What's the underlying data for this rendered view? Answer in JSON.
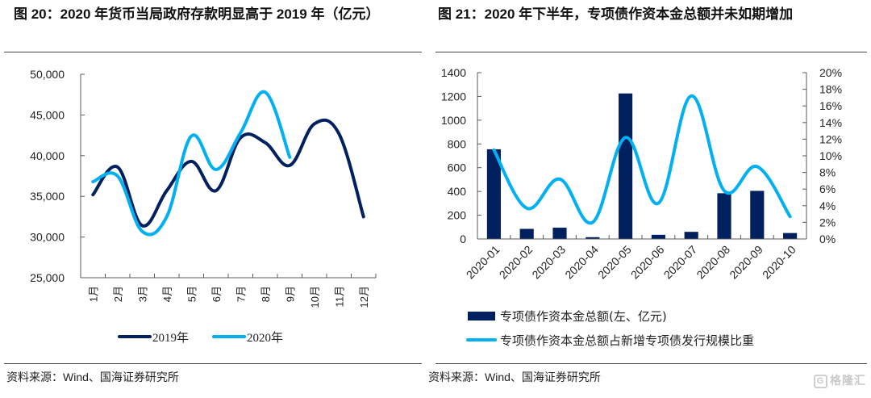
{
  "left_figure": {
    "title": "图 20：2020 年货币当局政府存款明显高于 2019 年（亿元）",
    "source": "资料来源：Wind、国海证券研究所"
  },
  "right_figure": {
    "title": "图 21：2020 年下半年，专项债作资本金总额并未如期增加",
    "source": "资料来源：Wind、国海证券研究所"
  },
  "watermark": {
    "icon": "G",
    "text": "格隆汇"
  },
  "colors": {
    "navy": "#002060",
    "sky": "#00B0F0",
    "axis": "#595959"
  },
  "chart_data": [
    {
      "type": "line",
      "title": "2020 年货币当局政府存款明显高于 2019 年（亿元）",
      "xlabel": "",
      "ylabel": "",
      "categories": [
        "1月",
        "2月",
        "3月",
        "4月",
        "5月",
        "6月",
        "7月",
        "8月",
        "9月",
        "10月",
        "11月",
        "12月"
      ],
      "ylim": [
        25000,
        50000
      ],
      "yticks": [
        25000,
        30000,
        35000,
        40000,
        45000,
        50000
      ],
      "ytick_labels": [
        "25,000",
        "30,000",
        "35,000",
        "40,000",
        "45,000",
        "50,000"
      ],
      "grid": false,
      "legend_position": "bottom",
      "smooth": true,
      "series": [
        {
          "name": "2019年",
          "color": "#002060",
          "values": [
            35200,
            38600,
            31400,
            35700,
            39300,
            35700,
            42200,
            41600,
            38800,
            43900,
            42700,
            32500
          ]
        },
        {
          "name": "2020年",
          "color": "#00B0F0",
          "values": [
            36800,
            37500,
            30700,
            32500,
            42400,
            38300,
            42800,
            47800,
            39800,
            null,
            null,
            null
          ]
        }
      ]
    },
    {
      "type": "bar",
      "title": "2020 年下半年，专项债作资本金总额并未如期增加",
      "xlabel": "",
      "categories": [
        "2020-01",
        "2020-02",
        "2020-03",
        "2020-04",
        "2020-05",
        "2020-06",
        "2020-07",
        "2020-08",
        "2020-09",
        "2020-10"
      ],
      "ylim": [
        0,
        1400
      ],
      "yticks": [
        0,
        200,
        400,
        600,
        800,
        1000,
        1200,
        1400
      ],
      "ytick_labels": [
        "0",
        "200",
        "400",
        "600",
        "800",
        "1000",
        "1200",
        "1400"
      ],
      "y2lim": [
        0,
        20
      ],
      "y2ticks": [
        0,
        2,
        4,
        6,
        8,
        10,
        12,
        14,
        16,
        18,
        20
      ],
      "y2tick_labels": [
        "0%",
        "2%",
        "4%",
        "6%",
        "8%",
        "10%",
        "12%",
        "14%",
        "16%",
        "18%",
        "20%"
      ],
      "grid": false,
      "legend_position": "bottom",
      "series": [
        {
          "name": "专项债作资本金总额(左、亿元)",
          "type": "bar",
          "axis": "left",
          "color": "#002060",
          "values": [
            755,
            85,
            95,
            15,
            1225,
            35,
            60,
            385,
            405,
            50
          ]
        },
        {
          "name": "专项债作资本金总额占新增专项债发行规模比重",
          "type": "line",
          "axis": "right",
          "color": "#00B0F0",
          "smooth": true,
          "unit": "%",
          "values": [
            10.7,
            3.7,
            7.2,
            2.0,
            12.2,
            4.3,
            17.2,
            5.8,
            8.7,
            2.7
          ]
        }
      ]
    }
  ]
}
